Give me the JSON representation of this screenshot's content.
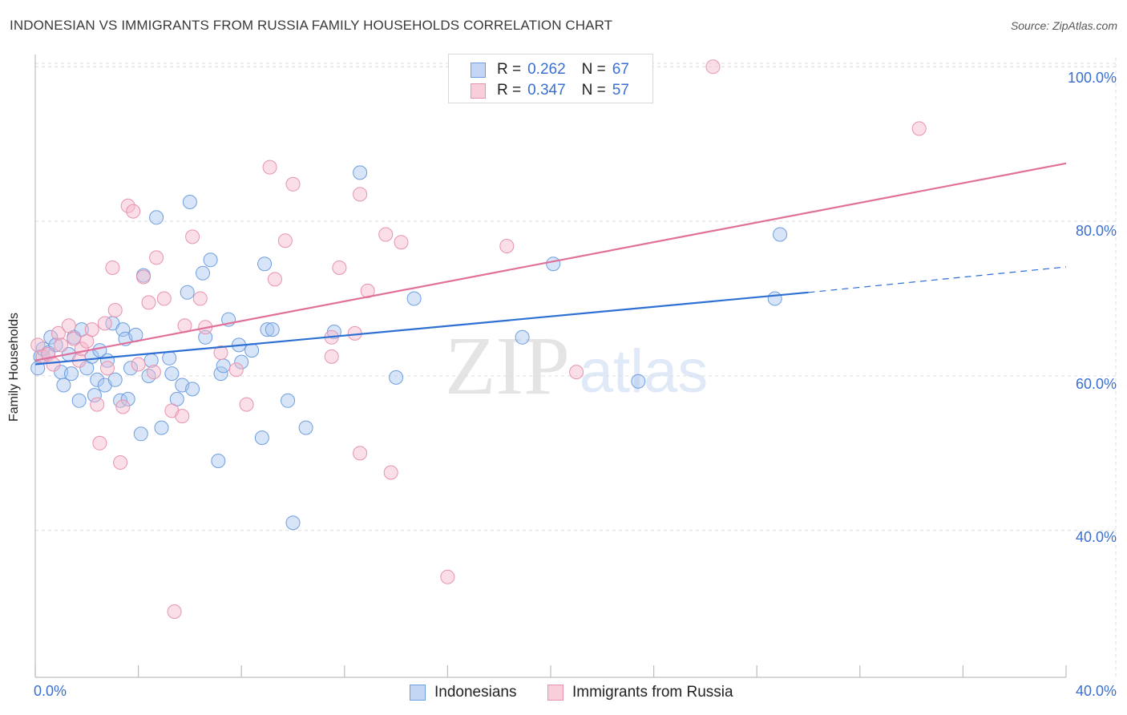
{
  "header": {
    "title": "INDONESIAN VS IMMIGRANTS FROM RUSSIA FAMILY HOUSEHOLDS CORRELATION CHART",
    "source": "Source: ZipAtlas.com"
  },
  "watermark": {
    "zip": "ZIP",
    "atlas": "atlas"
  },
  "colors": {
    "blue_fill": "#a9c6f0",
    "blue_stroke": "#6e9ee0",
    "blue_line": "#2d6fd2",
    "pink_fill": "#f6b9cc",
    "pink_stroke": "#e893ae",
    "pink_line": "#e0709a",
    "grid": "#dcdcdc",
    "axis_text": "#3a6fd1"
  },
  "legend": {
    "series": [
      {
        "r_label": "R =",
        "r_value": "0.262",
        "n_label": "N =",
        "n_value": "67"
      },
      {
        "r_label": "R =",
        "r_value": "0.347",
        "n_label": "N =",
        "n_value": "57"
      }
    ]
  },
  "chart_data": {
    "type": "scatter",
    "title": "INDONESIAN VS IMMIGRANTS FROM RUSSIA FAMILY HOUSEHOLDS CORRELATION CHART",
    "xlabel": "",
    "ylabel": "Family Households",
    "xlim": [
      0,
      40
    ],
    "ylim": [
      21,
      102
    ],
    "x_tick_labels": [
      "0.0%",
      "40.0%"
    ],
    "y_ticks": [
      40,
      60,
      80,
      100
    ],
    "y_tick_labels": [
      "40.0%",
      "60.0%",
      "80.0%",
      "100.0%"
    ],
    "grid": true,
    "legend_position": "bottom",
    "series": [
      {
        "name": "Indonesians",
        "color": "#6e9ee0",
        "r": 0.262,
        "n": 67,
        "trend": {
          "x": [
            0,
            30
          ],
          "y": [
            61.5,
            70.8
          ],
          "dashed_extension": {
            "x": [
              30,
              40
            ],
            "y": [
              70.8,
              74.1
            ]
          }
        },
        "points": [
          [
            0.2,
            62.5
          ],
          [
            0.3,
            63.5
          ],
          [
            0.5,
            63.0
          ],
          [
            0.6,
            65.0
          ],
          [
            0.8,
            64.0
          ],
          [
            1.0,
            60.5
          ],
          [
            1.1,
            58.8
          ],
          [
            1.3,
            62.8
          ],
          [
            1.4,
            60.3
          ],
          [
            1.5,
            65.0
          ],
          [
            1.7,
            56.8
          ],
          [
            1.8,
            66.0
          ],
          [
            2.0,
            61.0
          ],
          [
            2.2,
            62.5
          ],
          [
            2.3,
            57.5
          ],
          [
            2.4,
            59.5
          ],
          [
            2.5,
            63.3
          ],
          [
            2.7,
            58.8
          ],
          [
            2.8,
            62.0
          ],
          [
            3.0,
            66.8
          ],
          [
            3.1,
            59.5
          ],
          [
            3.3,
            56.8
          ],
          [
            3.4,
            66.0
          ],
          [
            3.5,
            64.8
          ],
          [
            3.6,
            57.0
          ],
          [
            3.7,
            61.0
          ],
          [
            3.9,
            65.3
          ],
          [
            4.1,
            52.5
          ],
          [
            4.2,
            73.0
          ],
          [
            4.4,
            60.0
          ],
          [
            4.5,
            62.0
          ],
          [
            4.7,
            80.5
          ],
          [
            4.9,
            53.3
          ],
          [
            5.2,
            62.3
          ],
          [
            5.3,
            60.3
          ],
          [
            5.5,
            57.0
          ],
          [
            5.7,
            58.8
          ],
          [
            5.9,
            70.8
          ],
          [
            6.0,
            82.5
          ],
          [
            6.1,
            58.3
          ],
          [
            6.5,
            73.3
          ],
          [
            6.6,
            65.0
          ],
          [
            6.8,
            75.0
          ],
          [
            7.1,
            49.0
          ],
          [
            7.2,
            60.3
          ],
          [
            7.3,
            61.3
          ],
          [
            7.5,
            67.3
          ],
          [
            7.9,
            64.0
          ],
          [
            8.0,
            61.8
          ],
          [
            8.4,
            63.3
          ],
          [
            8.8,
            52.0
          ],
          [
            8.9,
            74.5
          ],
          [
            9.0,
            66.0
          ],
          [
            9.2,
            66.0
          ],
          [
            9.8,
            56.8
          ],
          [
            10.0,
            41.0
          ],
          [
            10.5,
            53.3
          ],
          [
            11.6,
            65.7
          ],
          [
            12.6,
            86.3
          ],
          [
            14.0,
            59.8
          ],
          [
            14.7,
            70.0
          ],
          [
            18.9,
            65.0
          ],
          [
            20.1,
            74.5
          ],
          [
            23.4,
            59.3
          ],
          [
            28.7,
            70.0
          ],
          [
            28.9,
            78.3
          ],
          [
            0.1,
            61.0
          ]
        ]
      },
      {
        "name": "Immigrants from Russia",
        "color": "#e893ae",
        "r": 0.347,
        "n": 57,
        "trend": {
          "x": [
            0,
            40
          ],
          "y": [
            62.0,
            87.5
          ]
        },
        "points": [
          [
            0.1,
            64.0
          ],
          [
            0.3,
            62.5
          ],
          [
            0.5,
            62.8
          ],
          [
            0.7,
            61.5
          ],
          [
            0.9,
            65.5
          ],
          [
            1.0,
            64.0
          ],
          [
            1.3,
            66.5
          ],
          [
            1.5,
            64.8
          ],
          [
            1.7,
            62.0
          ],
          [
            1.8,
            63.5
          ],
          [
            2.0,
            64.5
          ],
          [
            2.2,
            66.0
          ],
          [
            2.4,
            56.3
          ],
          [
            2.5,
            51.3
          ],
          [
            2.7,
            66.8
          ],
          [
            2.8,
            61.0
          ],
          [
            3.0,
            74.0
          ],
          [
            3.1,
            68.5
          ],
          [
            3.3,
            48.8
          ],
          [
            3.4,
            56.0
          ],
          [
            3.6,
            82.0
          ],
          [
            3.8,
            81.3
          ],
          [
            4.0,
            61.5
          ],
          [
            4.2,
            72.8
          ],
          [
            4.4,
            69.5
          ],
          [
            4.6,
            60.5
          ],
          [
            4.7,
            75.3
          ],
          [
            5.0,
            70.0
          ],
          [
            5.3,
            55.5
          ],
          [
            5.4,
            29.5
          ],
          [
            5.7,
            54.8
          ],
          [
            5.8,
            66.5
          ],
          [
            6.1,
            78.0
          ],
          [
            6.4,
            70.0
          ],
          [
            6.6,
            66.3
          ],
          [
            7.2,
            63.0
          ],
          [
            7.8,
            60.8
          ],
          [
            8.2,
            56.3
          ],
          [
            9.1,
            87.0
          ],
          [
            9.3,
            72.5
          ],
          [
            9.7,
            77.5
          ],
          [
            10.0,
            84.8
          ],
          [
            11.5,
            65.0
          ],
          [
            11.5,
            62.5
          ],
          [
            11.8,
            74.0
          ],
          [
            12.4,
            65.5
          ],
          [
            12.6,
            83.5
          ],
          [
            12.6,
            50.0
          ],
          [
            12.9,
            71.0
          ],
          [
            13.6,
            78.3
          ],
          [
            13.8,
            47.5
          ],
          [
            14.2,
            77.3
          ],
          [
            16.0,
            34.0
          ],
          [
            18.3,
            76.8
          ],
          [
            21.0,
            60.5
          ],
          [
            26.3,
            100.0
          ],
          [
            34.3,
            92.0
          ]
        ]
      }
    ]
  },
  "bottom_legend": {
    "items": [
      "Indonesians",
      "Immigrants from Russia"
    ]
  }
}
